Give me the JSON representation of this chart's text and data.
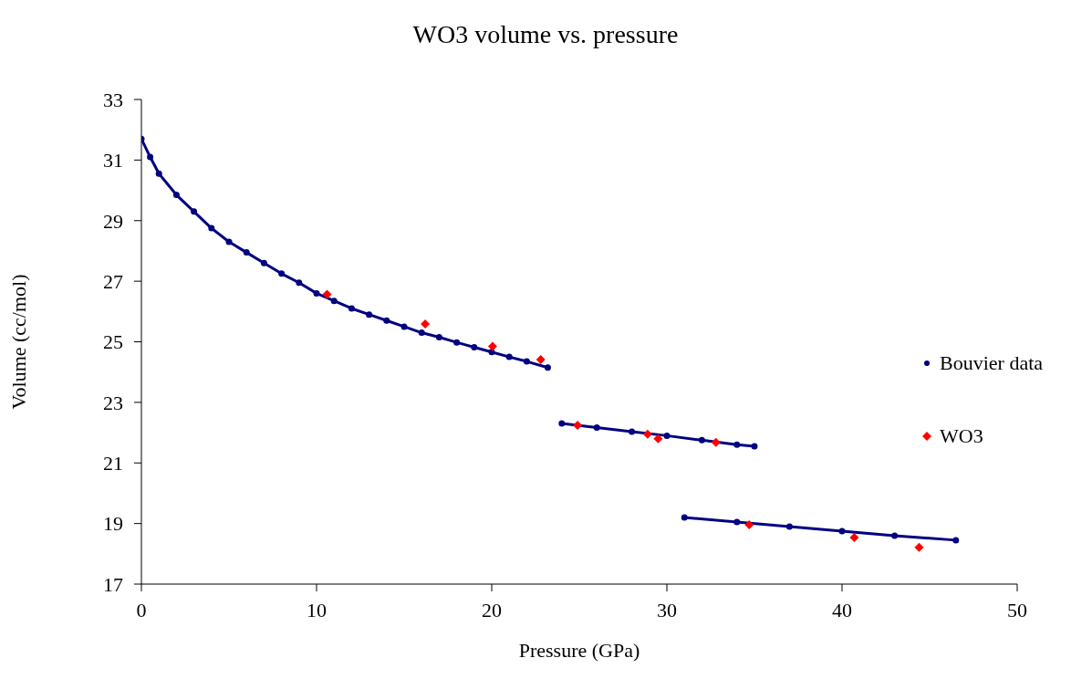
{
  "chart_data": {
    "type": "scatter",
    "title": "WO3 volume vs. pressure",
    "xlabel": "Pressure (GPa)",
    "ylabel": "Volume (cc/mol)",
    "xlim": [
      0,
      50
    ],
    "xticks": [
      0,
      10,
      20,
      30,
      40,
      50
    ],
    "ylim": [
      17,
      33
    ],
    "yticks": [
      17,
      19,
      21,
      23,
      25,
      27,
      29,
      31,
      33
    ],
    "grid": false,
    "legend": "right",
    "series": [
      {
        "name": "Bouvier data",
        "type": "line",
        "marker": "circle",
        "color": "#000080",
        "x": [
          0,
          0.5,
          1,
          2,
          3,
          4,
          5,
          6,
          7,
          8,
          9,
          10,
          11,
          12,
          13,
          14,
          15,
          16,
          17,
          18,
          19,
          20,
          21,
          22,
          23.2,
          null,
          24,
          26,
          28,
          30,
          32,
          34,
          35,
          null,
          31,
          34,
          37,
          40,
          43,
          46.5
        ],
        "values": [
          31.7,
          31.1,
          30.55,
          29.85,
          29.3,
          28.75,
          28.3,
          27.95,
          27.6,
          27.25,
          26.95,
          26.6,
          26.35,
          26.1,
          25.9,
          25.7,
          25.5,
          25.3,
          25.15,
          24.98,
          24.82,
          24.66,
          24.5,
          24.35,
          24.15,
          null,
          22.3,
          22.17,
          22.03,
          21.9,
          21.75,
          21.6,
          21.55,
          null,
          19.2,
          19.05,
          18.9,
          18.75,
          18.6,
          18.45
        ]
      },
      {
        "name": "WO3",
        "marker": "diamond",
        "color": "#ff0000",
        "x": [
          10.6,
          16.2,
          20.05,
          22.8,
          24.9,
          28.9,
          29.5,
          32.8,
          34.7,
          40.7,
          44.4
        ],
        "values": [
          26.57,
          25.59,
          24.85,
          24.41,
          22.24,
          21.95,
          21.8,
          21.68,
          18.96,
          18.54,
          18.21
        ]
      }
    ]
  }
}
